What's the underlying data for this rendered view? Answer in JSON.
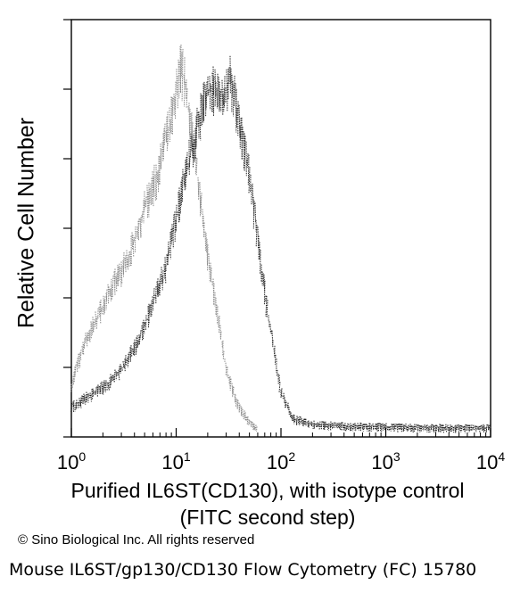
{
  "chart_data": {
    "type": "area",
    "xscale": "log",
    "xlim": [
      1,
      10000
    ],
    "xlabel_line1": "Purified IL6ST(CD130), with isotype control",
    "xlabel_line2": "(FITC second step)",
    "ylabel": "Relative Cell Number",
    "x_ticks": [
      {
        "value": 1,
        "base": "10",
        "exp": "0"
      },
      {
        "value": 10,
        "base": "10",
        "exp": "1"
      },
      {
        "value": 100,
        "base": "10",
        "exp": "2"
      },
      {
        "value": 1000,
        "base": "10",
        "exp": "3"
      },
      {
        "value": 10000,
        "base": "10",
        "exp": "4"
      }
    ],
    "series": [
      {
        "role": "isotype-control",
        "color": "#888888",
        "x": [
          1,
          1.3,
          1.8,
          2.5,
          3.5,
          5,
          6.5,
          8,
          9.5,
          11,
          12,
          14,
          17,
          20,
          25,
          30,
          38,
          47,
          60
        ],
        "y": [
          0.12,
          0.22,
          0.3,
          0.38,
          0.45,
          0.58,
          0.66,
          0.76,
          0.84,
          0.95,
          0.92,
          0.78,
          0.62,
          0.45,
          0.3,
          0.16,
          0.07,
          0.03,
          0
        ]
      },
      {
        "role": "IL6ST-stained",
        "color": "#222222",
        "x": [
          1,
          1.5,
          2.2,
          3.2,
          4.5,
          6,
          8,
          10,
          12,
          15,
          18,
          22,
          27,
          33,
          40,
          48,
          55,
          65,
          80,
          100,
          130,
          200,
          400,
          1000,
          3000,
          10000
        ],
        "y": [
          0.06,
          0.09,
          0.12,
          0.17,
          0.24,
          0.33,
          0.43,
          0.55,
          0.66,
          0.76,
          0.86,
          0.9,
          0.86,
          0.92,
          0.8,
          0.7,
          0.58,
          0.42,
          0.26,
          0.1,
          0.03,
          0.015,
          0.01,
          0.008,
          0.006,
          0.005
        ]
      }
    ]
  },
  "copyright": "© Sino Biological Inc. All rights reserved",
  "caption": "Mouse IL6ST/gp130/CD130 Flow Cytometry (FC) 15780"
}
